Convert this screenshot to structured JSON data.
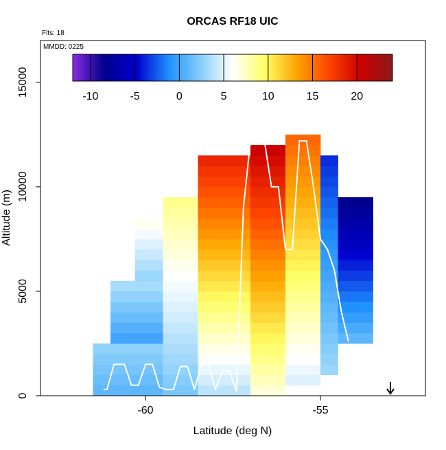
{
  "chart_data": {
    "type": "heatmap",
    "title": "ORCAS RF18 UIC",
    "flights_label": "Flts: 18",
    "date_label": "MMDD: 0225",
    "xlabel": "Latitude (deg N)",
    "ylabel": "Altitude (m)",
    "xlim": [
      -63,
      -52
    ],
    "ylim": [
      0,
      17000
    ],
    "x_ticks": [
      -60,
      -55
    ],
    "y_ticks": [
      0,
      5000,
      10000,
      15000
    ],
    "colorbar": {
      "range": [
        -12,
        24
      ],
      "ticks": [
        -10,
        -5,
        0,
        5,
        10,
        15,
        20
      ],
      "colors": [
        "#8a2be2",
        "#00008b",
        "#0000cd",
        "#1e90ff",
        "#87cefa",
        "#ffffff",
        "#ffff66",
        "#ffa500",
        "#ff4500",
        "#cd0000",
        "#8b1a1a"
      ]
    },
    "grid": false,
    "cell_size": {
      "dlat": 0.25,
      "dalt": 500
    },
    "columns": [
      {
        "lat_min": -61.5,
        "lat_max": -59.5,
        "alt_min": 0,
        "alt_max": 2500,
        "v_bottom": 1,
        "v_top": 3
      },
      {
        "lat_min": -61.0,
        "lat_max": -59.5,
        "alt_min": 2500,
        "alt_max": 5500,
        "v_bottom": 0,
        "v_top": 4
      },
      {
        "lat_min": -60.3,
        "lat_max": -59.5,
        "alt_min": 5500,
        "alt_max": 8500,
        "v_bottom": 3,
        "v_top": 7
      },
      {
        "lat_min": -59.5,
        "lat_max": -58.5,
        "alt_min": 0,
        "alt_max": 9500,
        "v_bottom": 2,
        "v_top": 9
      },
      {
        "lat_min": -58.5,
        "lat_max": -57.0,
        "alt_min": 0,
        "alt_max": 11500,
        "v_bottom": 4,
        "v_top": 19
      },
      {
        "lat_min": -57.0,
        "lat_max": -56.0,
        "alt_min": 0,
        "alt_max": 12000,
        "v_bottom": 7,
        "v_top": 21
      },
      {
        "lat_min": -56.0,
        "lat_max": -55.0,
        "alt_min": 500,
        "alt_max": 12500,
        "v_bottom": 5,
        "v_top": 16
      },
      {
        "lat_min": -55.0,
        "lat_max": -54.5,
        "alt_min": 1000,
        "alt_max": 11500,
        "v_bottom": 3,
        "v_top": -4
      },
      {
        "lat_min": -54.5,
        "lat_max": -53.5,
        "alt_min": 2500,
        "alt_max": 9500,
        "v_bottom": 1,
        "v_top": -9
      }
    ],
    "flight_track": {
      "color": "#ffffff",
      "lat": [
        -61.2,
        -61.1,
        -60.9,
        -60.6,
        -60.4,
        -60.2,
        -60.0,
        -59.8,
        -59.6,
        -59.4,
        -59.2,
        -59.0,
        -58.8,
        -58.6,
        -58.4,
        -58.2,
        -58.0,
        -57.8,
        -57.6,
        -57.4,
        -57.2,
        -57.0,
        -56.8,
        -56.6,
        -56.4,
        -56.2,
        -56.0,
        -55.8,
        -55.6,
        -55.4,
        -55.2,
        -55.0,
        -54.8,
        -54.6,
        -54.4,
        -54.2
      ],
      "alt": [
        300,
        300,
        1500,
        1500,
        500,
        500,
        1500,
        1500,
        400,
        300,
        300,
        1400,
        1400,
        300,
        1500,
        1500,
        300,
        1200,
        1200,
        200,
        9000,
        12200,
        12200,
        12200,
        10000,
        10000,
        7000,
        7000,
        12200,
        12200,
        10000,
        7500,
        7000,
        6000,
        4000,
        2600
      ]
    },
    "arrow_lat": -53.0
  }
}
